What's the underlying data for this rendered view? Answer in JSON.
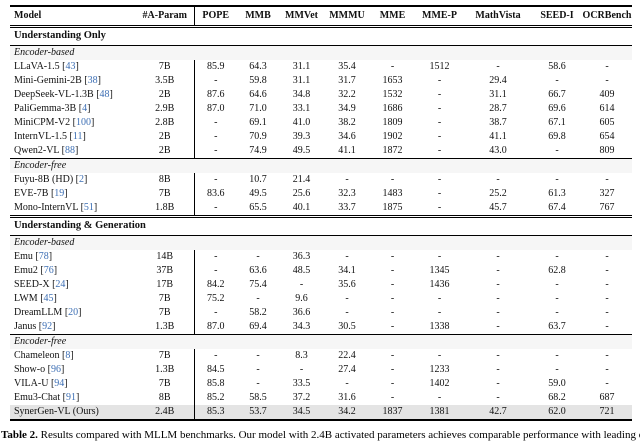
{
  "table": {
    "columns": [
      "Model",
      "#A-Param",
      "POPE",
      "MMB",
      "MMVet",
      "MMMU",
      "MME",
      "MME-P",
      "MathVista",
      "SEED-I",
      "OCRBench"
    ],
    "sections": [
      {
        "title": "Understanding Only",
        "groups": [
          {
            "label": "Encoder-based",
            "rows": [
              {
                "model": "LLaVA-1.5",
                "cite": "43",
                "params": "7B",
                "values": [
                  "85.9",
                  "64.3",
                  "31.1",
                  "35.4",
                  "-",
                  "1512",
                  "-",
                  "58.6",
                  "-"
                ],
                "highlight": false
              },
              {
                "model": "Mini-Gemini-2B",
                "cite": "38",
                "params": "3.5B",
                "values": [
                  "-",
                  "59.8",
                  "31.1",
                  "31.7",
                  "1653",
                  "-",
                  "29.4",
                  "-",
                  "-"
                ],
                "highlight": false
              },
              {
                "model": "DeepSeek-VL-1.3B",
                "cite": "48",
                "params": "2B",
                "values": [
                  "87.6",
                  "64.6",
                  "34.8",
                  "32.2",
                  "1532",
                  "-",
                  "31.1",
                  "66.7",
                  "409"
                ],
                "highlight": false
              },
              {
                "model": "PaliGemma-3B",
                "cite": "4",
                "params": "2.9B",
                "values": [
                  "87.0",
                  "71.0",
                  "33.1",
                  "34.9",
                  "1686",
                  "-",
                  "28.7",
                  "69.6",
                  "614"
                ],
                "highlight": false
              },
              {
                "model": "MiniCPM-V2",
                "cite": "100",
                "params": "2.8B",
                "values": [
                  "-",
                  "69.1",
                  "41.0",
                  "38.2",
                  "1809",
                  "-",
                  "38.7",
                  "67.1",
                  "605"
                ],
                "highlight": false
              },
              {
                "model": "InternVL-1.5",
                "cite": "11",
                "params": "2B",
                "values": [
                  "-",
                  "70.9",
                  "39.3",
                  "34.6",
                  "1902",
                  "-",
                  "41.1",
                  "69.8",
                  "654"
                ],
                "highlight": false
              },
              {
                "model": "Qwen2-VL",
                "cite": "88",
                "params": "2B",
                "values": [
                  "-",
                  "74.9",
                  "49.5",
                  "41.1",
                  "1872",
                  "-",
                  "43.0",
                  "-",
                  "809"
                ],
                "highlight": false
              }
            ]
          },
          {
            "label": "Encoder-free",
            "rows": [
              {
                "model": "Fuyu-8B (HD)",
                "cite": "2",
                "params": "8B",
                "values": [
                  "-",
                  "10.7",
                  "21.4",
                  "-",
                  "-",
                  "-",
                  "-",
                  "-",
                  "-"
                ],
                "highlight": false
              },
              {
                "model": "EVE-7B",
                "cite": "19",
                "params": "7B",
                "values": [
                  "83.6",
                  "49.5",
                  "25.6",
                  "32.3",
                  "1483",
                  "-",
                  "25.2",
                  "61.3",
                  "327"
                ],
                "highlight": false
              },
              {
                "model": "Mono-InternVL",
                "cite": "51",
                "params": "1.8B",
                "values": [
                  "-",
                  "65.5",
                  "40.1",
                  "33.7",
                  "1875",
                  "-",
                  "45.7",
                  "67.4",
                  "767"
                ],
                "highlight": false
              }
            ]
          }
        ]
      },
      {
        "title": "Understanding & Generation",
        "groups": [
          {
            "label": "Encoder-based",
            "rows": [
              {
                "model": "Emu",
                "cite": "78",
                "params": "14B",
                "values": [
                  "-",
                  "-",
                  "36.3",
                  "-",
                  "-",
                  "-",
                  "-",
                  "-",
                  "-"
                ],
                "highlight": false
              },
              {
                "model": "Emu2",
                "cite": "76",
                "params": "37B",
                "values": [
                  "-",
                  "63.6",
                  "48.5",
                  "34.1",
                  "-",
                  "1345",
                  "-",
                  "62.8",
                  "-"
                ],
                "highlight": false
              },
              {
                "model": "SEED-X",
                "cite": "24",
                "params": "17B",
                "values": [
                  "84.2",
                  "75.4",
                  "-",
                  "35.6",
                  "-",
                  "1436",
                  "-",
                  "-",
                  "-"
                ],
                "highlight": false
              },
              {
                "model": "LWM",
                "cite": "45",
                "params": "7B",
                "values": [
                  "75.2",
                  "-",
                  "9.6",
                  "-",
                  "-",
                  "-",
                  "-",
                  "-",
                  "-"
                ],
                "highlight": false
              },
              {
                "model": "DreamLLM",
                "cite": "20",
                "params": "7B",
                "values": [
                  "-",
                  "58.2",
                  "36.6",
                  "-",
                  "-",
                  "-",
                  "-",
                  "-",
                  "-"
                ],
                "highlight": false
              },
              {
                "model": "Janus",
                "cite": "92",
                "params": "1.3B",
                "values": [
                  "87.0",
                  "69.4",
                  "34.3",
                  "30.5",
                  "-",
                  "1338",
                  "-",
                  "63.7",
                  "-"
                ],
                "highlight": false
              }
            ]
          },
          {
            "label": "Encoder-free",
            "rows": [
              {
                "model": "Chameleon",
                "cite": "8",
                "params": "7B",
                "values": [
                  "-",
                  "-",
                  "8.3",
                  "22.4",
                  "-",
                  "-",
                  "-",
                  "-",
                  "-"
                ],
                "highlight": false
              },
              {
                "model": "Show-o",
                "cite": "96",
                "params": "1.3B",
                "values": [
                  "84.5",
                  "-",
                  "-",
                  "27.4",
                  "-",
                  "1233",
                  "-",
                  "-",
                  "-"
                ],
                "highlight": false
              },
              {
                "model": "VILA-U",
                "cite": "94",
                "params": "7B",
                "values": [
                  "85.8",
                  "-",
                  "33.5",
                  "-",
                  "-",
                  "1402",
                  "-",
                  "59.0",
                  "-"
                ],
                "highlight": false
              },
              {
                "model": "Emu3-Chat",
                "cite": "91",
                "params": "8B",
                "values": [
                  "85.2",
                  "58.5",
                  "37.2",
                  "31.6",
                  "-",
                  "-",
                  "-",
                  "68.2",
                  "687"
                ],
                "highlight": false
              },
              {
                "model": "SynerGen-VL (Ours)",
                "cite": "",
                "params": "2.4B",
                "values": [
                  "85.3",
                  "53.7",
                  "34.5",
                  "34.2",
                  "1837",
                  "1381",
                  "42.7",
                  "62.0",
                  "721"
                ],
                "highlight": true
              }
            ]
          }
        ]
      }
    ]
  },
  "caption": {
    "label": "Table 2.",
    "text_fragment": "Results compared with MLLM benchmarks. Our model with 2.4B activated parameters achieves comparable performance with leading encoder-based models."
  },
  "colors": {
    "citation_blue": "#3d6fb4",
    "group_row_bg": "#f6f6f6",
    "highlight_row_bg": "#e4e4e4",
    "rule_black": "#000000"
  }
}
